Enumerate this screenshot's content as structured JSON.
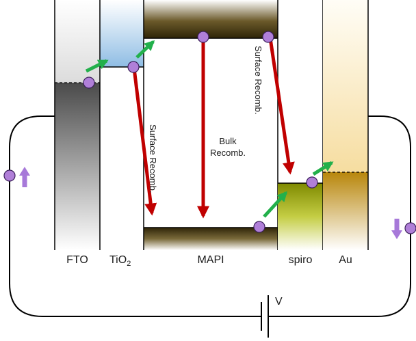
{
  "layers": {
    "fto": "FTO",
    "tio2_main": "TiO",
    "tio2_sub": "2",
    "mapi": "MAPI",
    "spiro": "spiro",
    "au": "Au"
  },
  "annotations": {
    "surface_recomb_left": "Surface Recomb.",
    "bulk_line1": "Bulk",
    "bulk_line2": "Recomb.",
    "surface_recomb_right": "Surface Recomb."
  },
  "circuit": {
    "voltage_label": "V"
  },
  "colors": {
    "recombination_arrow": "#c00000",
    "transfer_arrow": "#22b04b",
    "carrier": "#b07fd8",
    "current_arrow": "#a779d9"
  }
}
